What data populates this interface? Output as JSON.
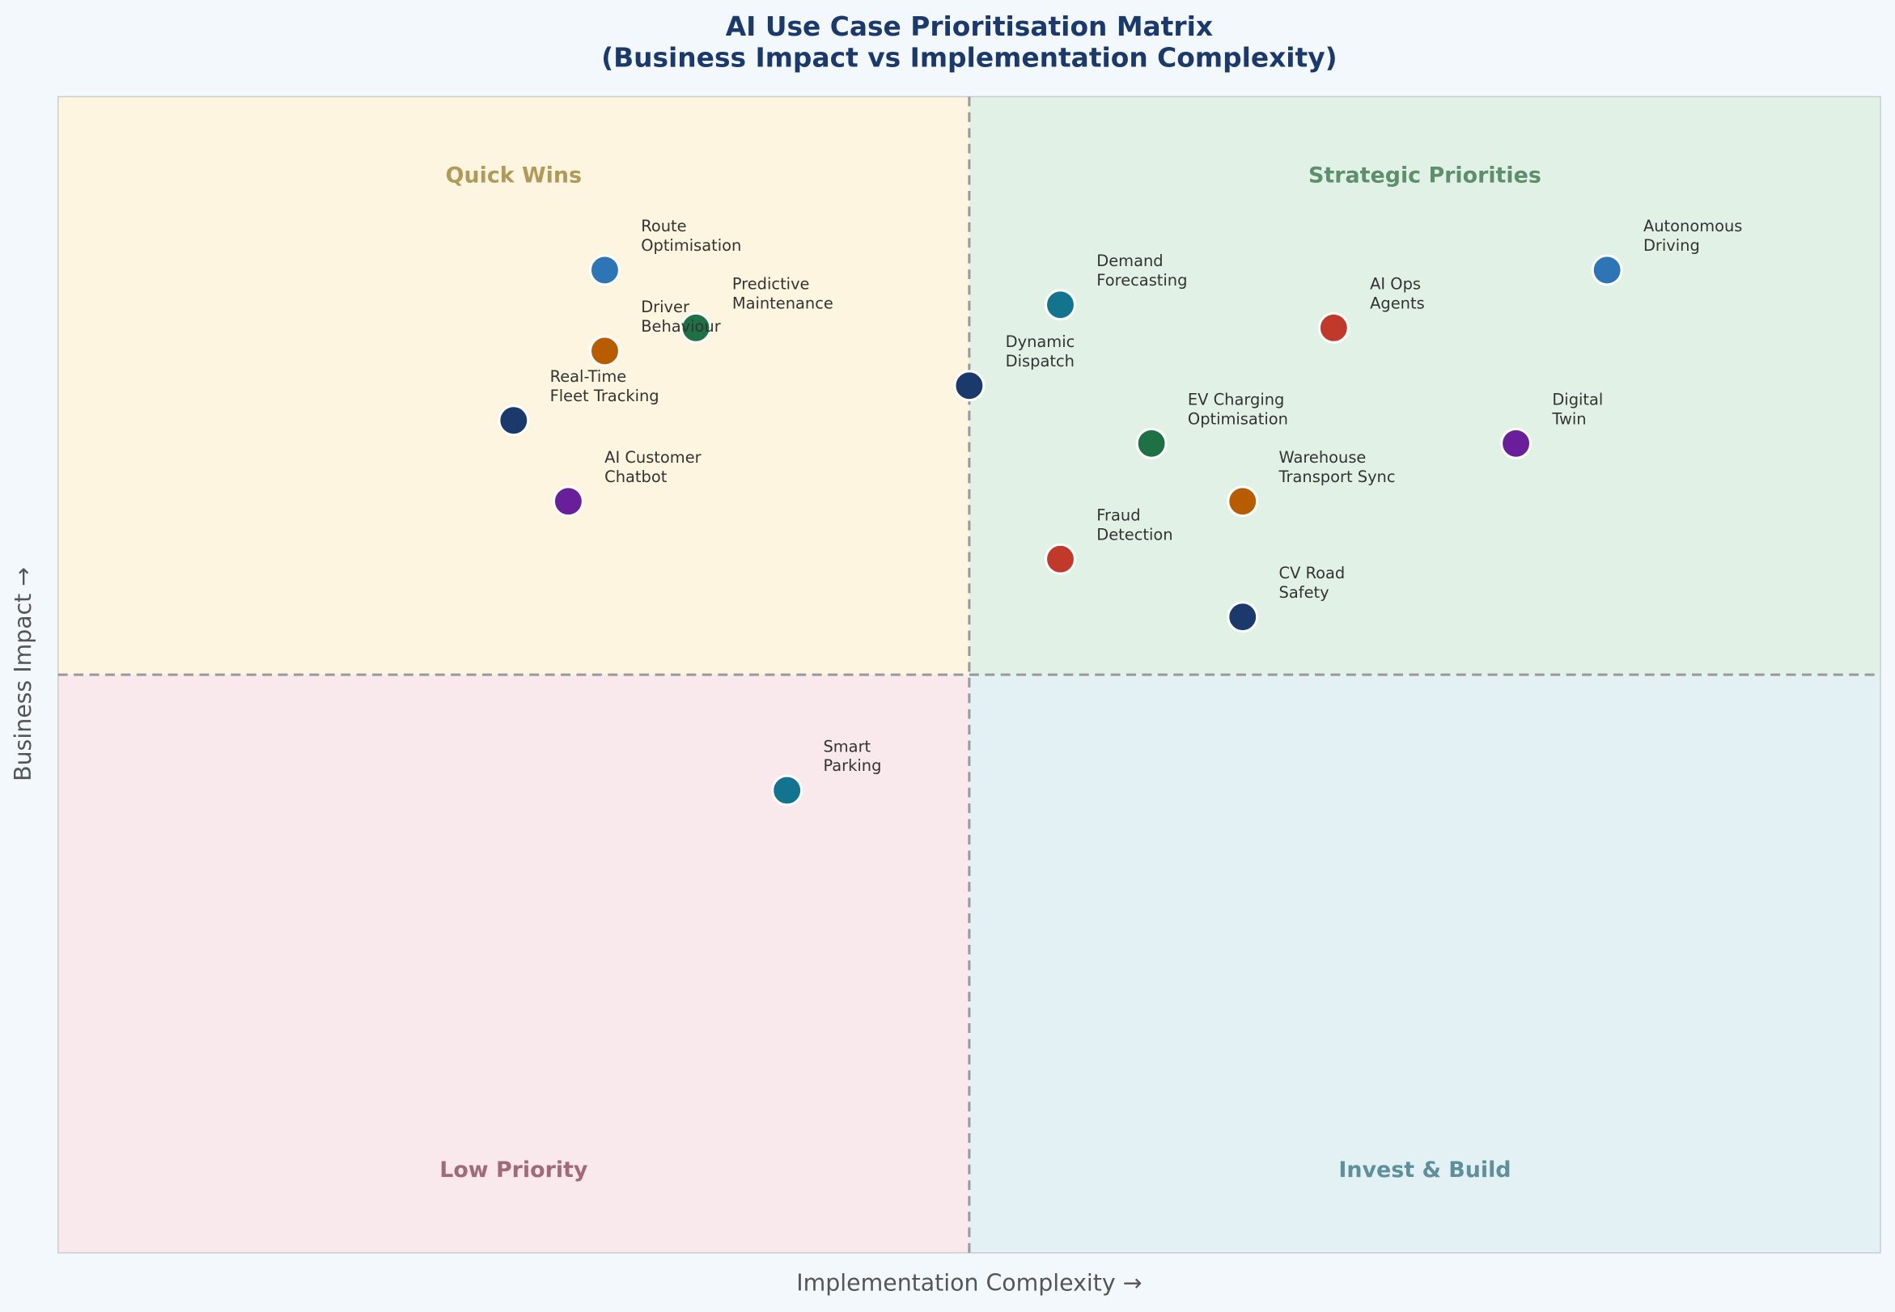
{
  "chart_data": {
    "type": "scatter",
    "title": "AI Use Case Prioritisation Matrix",
    "subtitle": "(Business Impact vs Implementation Complexity)",
    "x_label": "Implementation Complexity  →",
    "y_label": "Business Impact  →",
    "xlim": [
      0,
      10
    ],
    "ylim": [
      0,
      10
    ],
    "x_divider": 5,
    "y_divider": 5,
    "quadrants": [
      {
        "label": "Quick Wins",
        "color": "#fdf5e0",
        "text_color": "#b09a5a"
      },
      {
        "label": "Strategic Priorities",
        "color": "#e2f1e6",
        "text_color": "#5e8f6c"
      },
      {
        "label": "Low Priority",
        "color": "#f9e9ec",
        "text_color": "#a06a78"
      },
      {
        "label": "Invest & Build",
        "color": "#e3f1f5",
        "text_color": "#5e8f9a"
      }
    ],
    "points": [
      {
        "label": "Route\nOptimisation",
        "x": 3.0,
        "y": 8.5,
        "color": "#2e75b6"
      },
      {
        "label": "Predictive\nMaintenance",
        "x": 3.5,
        "y": 8.0,
        "color": "#1e7145"
      },
      {
        "label": "Driver\nBehaviour",
        "x": 3.0,
        "y": 7.8,
        "color": "#b85c00"
      },
      {
        "label": "Real-Time\nFleet Tracking",
        "x": 2.5,
        "y": 7.2,
        "color": "#1b3a6b"
      },
      {
        "label": "AI Customer\nChatbot",
        "x": 2.8,
        "y": 6.5,
        "color": "#6a1f9a"
      },
      {
        "label": "Dynamic\nDispatch",
        "x": 5.0,
        "y": 7.5,
        "color": "#1b3a6b"
      },
      {
        "label": "Demand\nForecasting",
        "x": 5.5,
        "y": 8.2,
        "color": "#12748f"
      },
      {
        "label": "AI Ops\nAgents",
        "x": 7.0,
        "y": 8.0,
        "color": "#c0392b"
      },
      {
        "label": "Autonomous\nDriving",
        "x": 8.5,
        "y": 8.5,
        "color": "#2e75b6"
      },
      {
        "label": "EV Charging\nOptimisation",
        "x": 6.0,
        "y": 7.0,
        "color": "#1e7145"
      },
      {
        "label": "Digital\nTwin",
        "x": 8.0,
        "y": 7.0,
        "color": "#6a1f9a"
      },
      {
        "label": "Warehouse\nTransport Sync",
        "x": 6.5,
        "y": 6.5,
        "color": "#b85c00"
      },
      {
        "label": "Fraud\nDetection",
        "x": 5.5,
        "y": 6.0,
        "color": "#c0392b"
      },
      {
        "label": "CV Road\nSafety",
        "x": 6.5,
        "y": 5.5,
        "color": "#1b3a6b"
      },
      {
        "label": "Smart\nParking",
        "x": 4.0,
        "y": 4.0,
        "color": "#12748f"
      }
    ]
  }
}
